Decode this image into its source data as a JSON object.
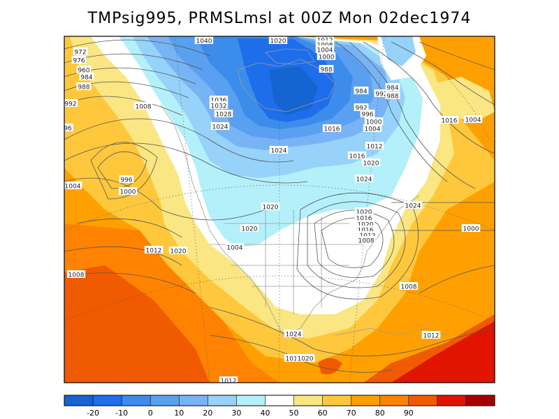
{
  "title": "TMPsig995, PRMSLmsl at 00Z Mon 02dec1974",
  "colorbar": {
    "colors": [
      "#1464d2",
      "#1e6eeb",
      "#3c8ceb",
      "#5aa0f0",
      "#78b4f5",
      "#96d2fa",
      "#b4f0fa",
      "#ffffff",
      "#fae682",
      "#ffc83c",
      "#ffa000",
      "#ff8200",
      "#f05a00",
      "#e11400",
      "#a50000"
    ],
    "ticks": [
      "-20",
      "-10",
      "0",
      "10",
      "20",
      "30",
      "40",
      "50",
      "60",
      "70",
      "80",
      "90"
    ]
  },
  "isobar_labels": [
    "1040",
    "1020",
    "1012",
    "1008",
    "1004",
    "1000",
    "988",
    "972",
    "976",
    "960",
    "984",
    "988",
    "992",
    "1008",
    "1036",
    "1032",
    "1028",
    "1024",
    "1016",
    "984",
    "992",
    "984",
    "992",
    "988",
    "996",
    "1000",
    "1004",
    "1016",
    "96",
    "1012",
    "1016",
    "1020",
    "1024",
    "1024",
    "996",
    "1000",
    "1004",
    "1020",
    "1024",
    "1020",
    "1004",
    "1020",
    "1016",
    "1020",
    "1016",
    "1012",
    "1008",
    "1004",
    "1000",
    "1008",
    "1012",
    "1020",
    "1012",
    "1008",
    "1024",
    "1020",
    "1012",
    "1012"
  ]
}
